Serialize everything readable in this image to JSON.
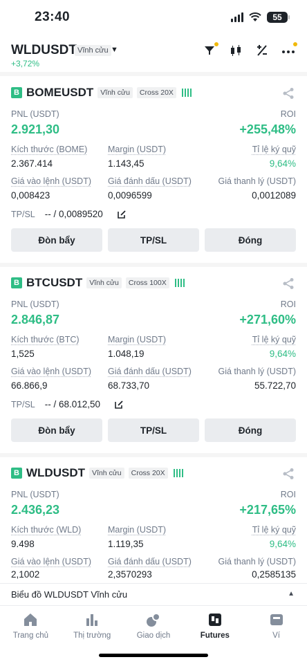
{
  "status": {
    "time": "23:40",
    "battery": "55"
  },
  "header": {
    "symbol": "WLDUSDT",
    "tag": "Vĩnh cửu",
    "change": "+3,72%"
  },
  "labels": {
    "pnl": "PNL (USDT)",
    "roi": "ROI",
    "margin": "Margin (USDT)",
    "margin_ratio": "Tỉ lệ ký quỹ",
    "entry_price": "Giá vào lệnh (USDT)",
    "mark_price": "Giá đánh dấu (USDT)",
    "liq_price": "Giá thanh lý (USDT)",
    "tpsl": "TP/SL"
  },
  "buttons": {
    "leverage": "Đòn bẩy",
    "tpsl": "TP/SL",
    "close": "Đóng"
  },
  "positions": [
    {
      "symbol": "BOMEUSDT",
      "badge": "B",
      "type": "Vĩnh cửu",
      "mode": "Cross 20X",
      "pnl": "2.921,30",
      "roi": "+255,48%",
      "size_label": "Kích thước (BOME)",
      "size": "2.367.414",
      "margin": "1.143,45",
      "margin_ratio": "9,64%",
      "entry_price": "0,008423",
      "mark_price": "0,0096599",
      "liq_price": "0,0012089",
      "tpsl": "-- / 0,0089520"
    },
    {
      "symbol": "BTCUSDT",
      "badge": "B",
      "type": "Vĩnh cửu",
      "mode": "Cross 100X",
      "pnl": "2.846,87",
      "roi": "+271,60%",
      "size_label": "Kích thước (BTC)",
      "size": "1,525",
      "margin": "1.048,19",
      "margin_ratio": "9,64%",
      "entry_price": "66.866,9",
      "mark_price": "68.733,70",
      "liq_price": "55.722,70",
      "tpsl": "-- / 68.012,50"
    },
    {
      "symbol": "WLDUSDT",
      "badge": "B",
      "type": "Vĩnh cửu",
      "mode": "Cross 20X",
      "pnl": "2.436,23",
      "roi": "+217,65%",
      "size_label": "Kích thước (WLD)",
      "size": "9.498",
      "margin": "1.119,35",
      "margin_ratio": "9,64%",
      "entry_price": "2,1002",
      "mark_price": "2,3570293",
      "liq_price": "0,2585135"
    }
  ],
  "chart_bar": {
    "label": "Biểu đồ WLDUSDT Vĩnh cửu"
  },
  "nav": [
    {
      "label": "Trang chủ",
      "icon": "home-icon"
    },
    {
      "label": "Thị trường",
      "icon": "market-chart-icon"
    },
    {
      "label": "Giao dịch",
      "icon": "trade-icon"
    },
    {
      "label": "Futures",
      "icon": "futures-icon",
      "active": true
    },
    {
      "label": "Ví",
      "icon": "wallet-icon"
    }
  ],
  "colors": {
    "profit": "#2ebd85",
    "accent": "#f0b90b",
    "text": "#1e2329",
    "muted": "#707a8a"
  }
}
